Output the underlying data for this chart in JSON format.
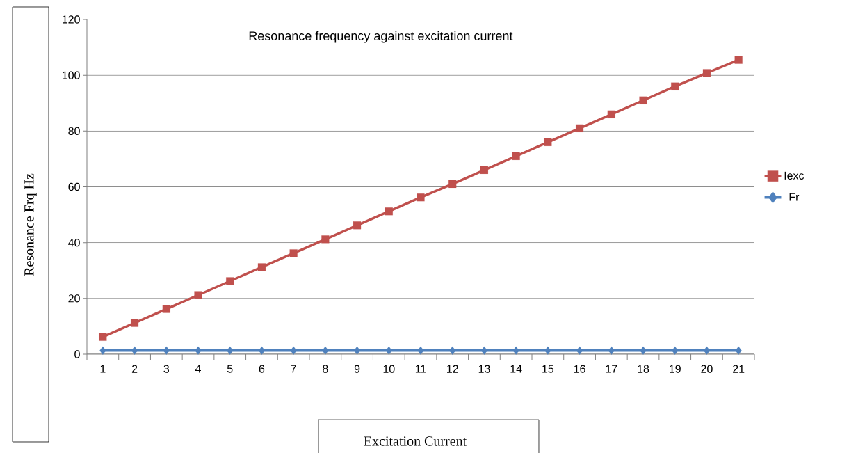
{
  "chart_data": {
    "type": "line",
    "title": "Resonance frequency against excitation current",
    "xlabel": "Excitation Current",
    "ylabel": "Resonance Frq Hz",
    "categories": [
      "1",
      "2",
      "3",
      "4",
      "5",
      "6",
      "7",
      "8",
      "9",
      "10",
      "11",
      "12",
      "13",
      "14",
      "15",
      "16",
      "17",
      "18",
      "19",
      "20",
      "21"
    ],
    "series": [
      {
        "name": "Iexc",
        "color": "#c0504d",
        "marker": "square",
        "values": [
          6.2,
          11.2,
          16.2,
          21.2,
          26.2,
          31.2,
          36.2,
          41.2,
          46.2,
          51.2,
          56.2,
          61,
          66,
          71,
          76,
          81,
          86,
          91,
          96,
          100.8,
          105.5
        ]
      },
      {
        "name": "Fr",
        "color": "#4f81bd",
        "marker": "diamond",
        "values": [
          1.3,
          1.3,
          1.3,
          1.3,
          1.3,
          1.3,
          1.3,
          1.3,
          1.3,
          1.3,
          1.3,
          1.3,
          1.3,
          1.3,
          1.3,
          1.3,
          1.3,
          1.3,
          1.3,
          1.3,
          1.3
        ]
      }
    ],
    "ylim": [
      0,
      120
    ],
    "yticks": [
      0,
      20,
      40,
      60,
      80,
      100,
      120
    ],
    "grid": "y",
    "legend": "right",
    "line_style": "solid"
  }
}
